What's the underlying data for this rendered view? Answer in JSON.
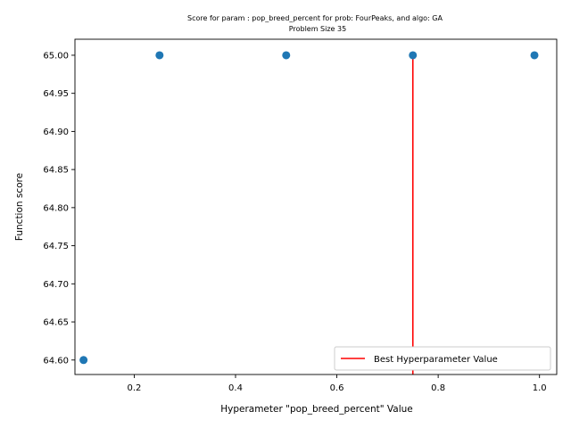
{
  "chart_data": {
    "type": "scatter",
    "title": "Score for param : pop_breed_percent for prob: FourPeaks, and algo: GA",
    "subtitle": "Problem Size 35",
    "xlabel": "Hyperameter \"pop_breed_percent\" Value",
    "ylabel": "Function score",
    "xlim": [
      0.083,
      1.034
    ],
    "ylim": [
      64.581,
      65.021
    ],
    "x_ticks": [
      0.2,
      0.4,
      0.6,
      0.8,
      1.0
    ],
    "x_tick_labels": [
      "0.2",
      "0.4",
      "0.6",
      "0.8",
      "1.0"
    ],
    "y_ticks": [
      64.6,
      64.65,
      64.7,
      64.75,
      64.8,
      64.85,
      64.9,
      64.95,
      65.0
    ],
    "y_tick_labels": [
      "64.60",
      "64.65",
      "64.70",
      "64.75",
      "64.80",
      "64.85",
      "64.90",
      "64.95",
      "65.00"
    ],
    "grid": false,
    "points": [
      {
        "x": 0.1,
        "y": 64.6
      },
      {
        "x": 0.25,
        "y": 65.0
      },
      {
        "x": 0.5,
        "y": 65.0
      },
      {
        "x": 0.75,
        "y": 65.0
      },
      {
        "x": 0.99,
        "y": 65.0
      }
    ],
    "point_color": "#1f77b4",
    "best_line": {
      "label": "Best Hyperparameter Value",
      "x": 0.75,
      "y_from": 64.581,
      "y_to": 65.0,
      "color": "#ff0000"
    },
    "legend_position": "lower-right"
  }
}
